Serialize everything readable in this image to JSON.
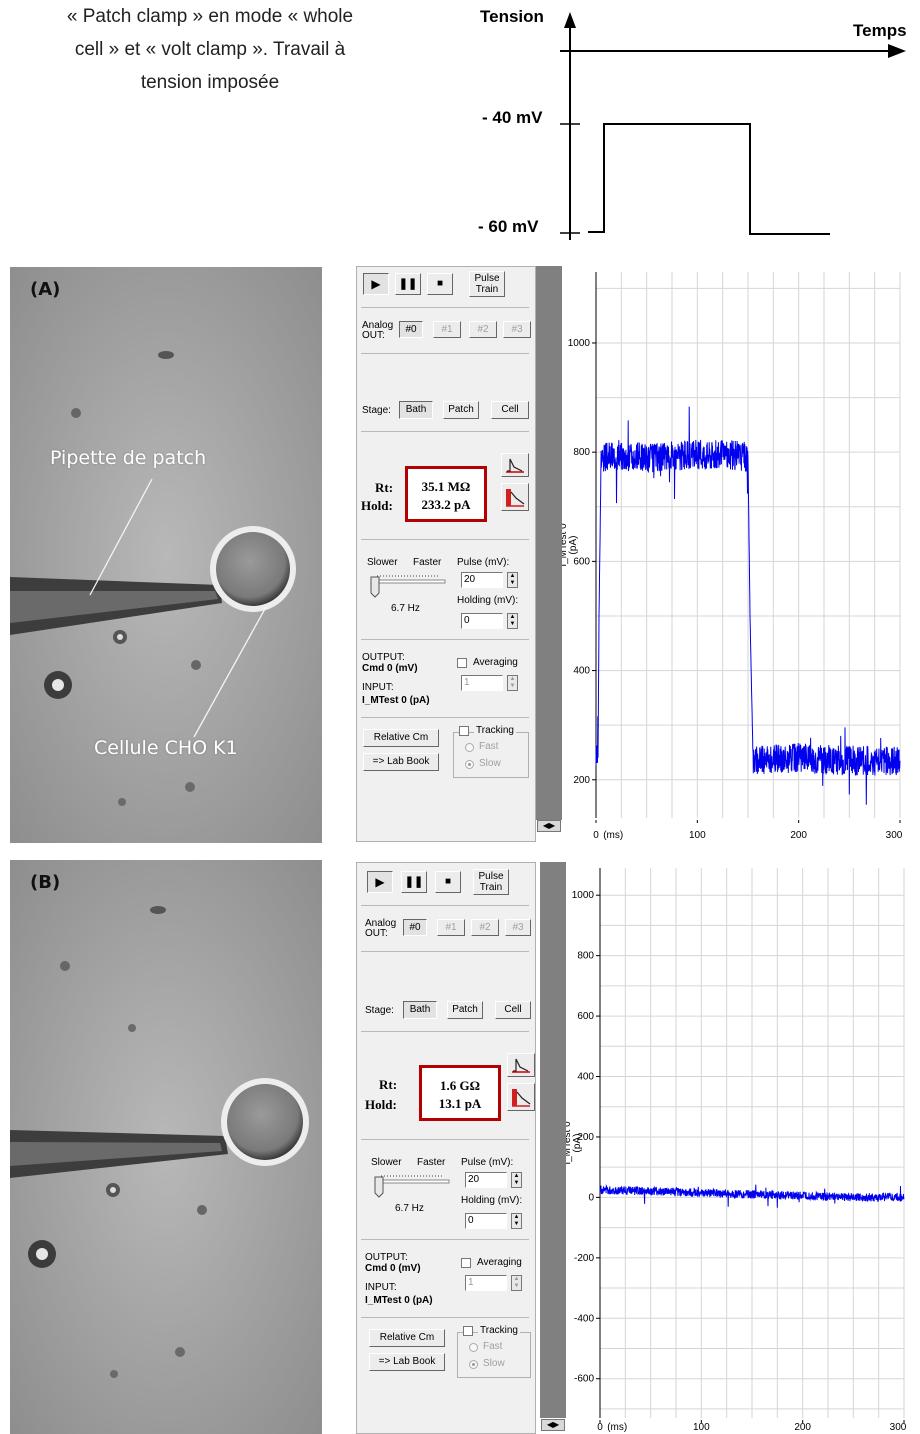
{
  "intro": {
    "line1": "« Patch clamp » en mode « whole",
    "line2": "cell » et « volt clamp ». Travail à",
    "line3": "tension imposée"
  },
  "protocol": {
    "y_axis_label": "Tension",
    "x_axis_label": "Temps",
    "level_high": "- 40 mV",
    "level_low": "- 60 mV"
  },
  "panels": [
    {
      "label": "(A)",
      "annotations": {
        "pipette": "Pipette de patch",
        "cell": "Cellule CHO K1"
      },
      "controls": {
        "pulse_train": [
          "Pulse",
          "Train"
        ],
        "analog_out": "Analog",
        "analog_out2": "OUT:",
        "analog_buttons": [
          "#0",
          "#1",
          "#2",
          "#3"
        ],
        "stage_label": "Stage:",
        "stage_buttons": [
          "Bath",
          "Patch",
          "Cell"
        ],
        "rt_label": "Rt:",
        "hold_label": "Hold:",
        "rt_value": "35.1 MΩ",
        "hold_value": "233.2 pA",
        "slower": "Slower",
        "faster": "Faster",
        "rate": "6.7 Hz",
        "pulse_label": "Pulse (mV):",
        "pulse_value": "20",
        "holding_label": "Holding (mV):",
        "holding_value": "0",
        "output_label": "OUTPUT:",
        "output_value": "Cmd 0 (mV)",
        "input_label": "INPUT:",
        "input_value": "I_MTest 0 (pA)",
        "averaging": "Averaging",
        "averaging_value": "1",
        "relative_cm": "Relative Cm",
        "lab_book": "=> Lab Book",
        "tracking": "Tracking",
        "fast": "Fast",
        "slow": "Slow"
      },
      "y_axis_title": "I_MTest 0",
      "y_axis_unit": "(pA)",
      "x_axis_unit": "(ms)"
    },
    {
      "label": "(B)",
      "annotations": {
        "pipette": "",
        "cell": ""
      },
      "controls": {
        "pulse_train": [
          "Pulse",
          "Train"
        ],
        "analog_out": "Analog",
        "analog_out2": "OUT:",
        "analog_buttons": [
          "#0",
          "#1",
          "#2",
          "#3"
        ],
        "stage_label": "Stage:",
        "stage_buttons": [
          "Bath",
          "Patch",
          "Cell"
        ],
        "rt_label": "Rt:",
        "hold_label": "Hold:",
        "rt_value": "1.6 GΩ",
        "hold_value": "13.1 pA",
        "slower": "Slower",
        "faster": "Faster",
        "rate": "6.7 Hz",
        "pulse_label": "Pulse (mV):",
        "pulse_value": "20",
        "holding_label": "Holding (mV):",
        "holding_value": "0",
        "output_label": "OUTPUT:",
        "output_value": "Cmd 0 (mV)",
        "input_label": "INPUT:",
        "input_value": "I_MTest 0 (pA)",
        "averaging": "Averaging",
        "averaging_value": "1",
        "relative_cm": "Relative Cm",
        "lab_book": "=> Lab Book",
        "tracking": "Tracking",
        "fast": "Fast",
        "slow": "Slow"
      },
      "y_axis_title": "I_MTest 0",
      "y_axis_unit": "(pA)",
      "x_axis_unit": "(ms)"
    }
  ],
  "chart_data": [
    {
      "type": "line",
      "series": [
        {
          "values_description": "",
          "x": [
            0,
            2,
            3,
            5,
            20,
            50,
            100,
            140,
            150,
            152,
            155,
            160,
            200,
            250,
            300
          ],
          "y": [
            235,
            240,
            500,
            790,
            795,
            790,
            795,
            795,
            790,
            500,
            235,
            235,
            240,
            235,
            235
          ]
        }
      ],
      "xticks": [
        0,
        100,
        200,
        300
      ],
      "yticks": [
        200,
        400,
        600,
        800,
        1000
      ],
      "xlim": [
        0,
        300
      ],
      "ylim": [
        130,
        1130
      ],
      "color": "#0000ee",
      "grid": true
    },
    {
      "type": "line",
      "series": [
        {
          "values_description": "",
          "x": [
            0,
            50,
            100,
            150,
            200,
            250,
            300
          ],
          "y": [
            25,
            20,
            15,
            10,
            5,
            0,
            0
          ]
        }
      ],
      "xticks": [
        0,
        100,
        200,
        300
      ],
      "yticks": [
        -600,
        -400,
        -200,
        0,
        200,
        400,
        600,
        800,
        1000
      ],
      "xlim": [
        0,
        300
      ],
      "ylim": [
        -730,
        1090
      ],
      "color": "#0000ee",
      "grid": true
    }
  ]
}
